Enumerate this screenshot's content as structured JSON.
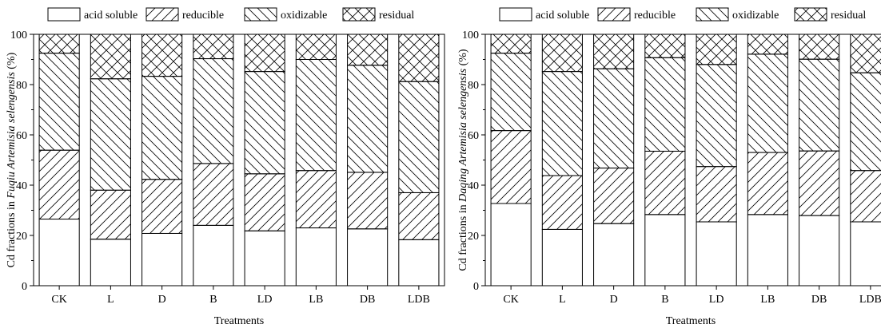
{
  "chart_data": [
    {
      "type": "bar",
      "stacked": true,
      "panel": "left",
      "categories": [
        "CK",
        "L",
        "D",
        "B",
        "LD",
        "LB",
        "DB",
        "LDB"
      ],
      "series": [
        {
          "name": "acid soluble",
          "values": [
            26.5,
            18.5,
            20.8,
            24.0,
            21.8,
            23.0,
            22.6,
            18.3
          ]
        },
        {
          "name": "reducible",
          "values": [
            27.4,
            19.5,
            21.5,
            24.6,
            22.7,
            22.8,
            22.5,
            18.7
          ]
        },
        {
          "name": "oxidizable",
          "values": [
            38.6,
            44.3,
            41.0,
            41.7,
            40.7,
            44.2,
            42.6,
            44.2
          ]
        },
        {
          "name": "residual",
          "values": [
            7.5,
            17.7,
            16.7,
            9.7,
            14.8,
            10.0,
            12.3,
            18.8
          ]
        }
      ],
      "xlabel": "Treatments",
      "ylabel_prefix": "Cd fractions in ",
      "ylabel_italic": "Fuqiu Artemisia selengensis",
      "ylabel_suffix": " (%)",
      "ylim": [
        0,
        100
      ],
      "yticks": [
        0,
        20,
        40,
        60,
        80,
        100
      ],
      "legend_position": "top",
      "grid": false
    },
    {
      "type": "bar",
      "stacked": true,
      "panel": "right",
      "categories": [
        "CK",
        "L",
        "D",
        "B",
        "LD",
        "LB",
        "DB",
        "LDB"
      ],
      "series": [
        {
          "name": "acid soluble",
          "values": [
            32.7,
            22.4,
            24.7,
            28.3,
            25.4,
            28.3,
            27.9,
            25.4
          ]
        },
        {
          "name": "reducible",
          "values": [
            29.0,
            21.4,
            22.1,
            25.2,
            22.0,
            24.7,
            25.7,
            20.4
          ]
        },
        {
          "name": "oxidizable",
          "values": [
            30.8,
            41.4,
            39.5,
            37.2,
            40.6,
            39.1,
            36.5,
            38.9
          ]
        },
        {
          "name": "residual",
          "values": [
            7.5,
            14.8,
            13.7,
            9.3,
            12.0,
            7.9,
            9.9,
            15.3
          ]
        }
      ],
      "xlabel": "Treatments",
      "ylabel_prefix": "Cd fractions in ",
      "ylabel_italic": "Daqing Artemisia selengensis",
      "ylabel_suffix": " (%)",
      "ylim": [
        0,
        100
      ],
      "yticks": [
        0,
        20,
        40,
        60,
        80,
        100
      ],
      "legend_position": "top",
      "grid": false
    }
  ]
}
